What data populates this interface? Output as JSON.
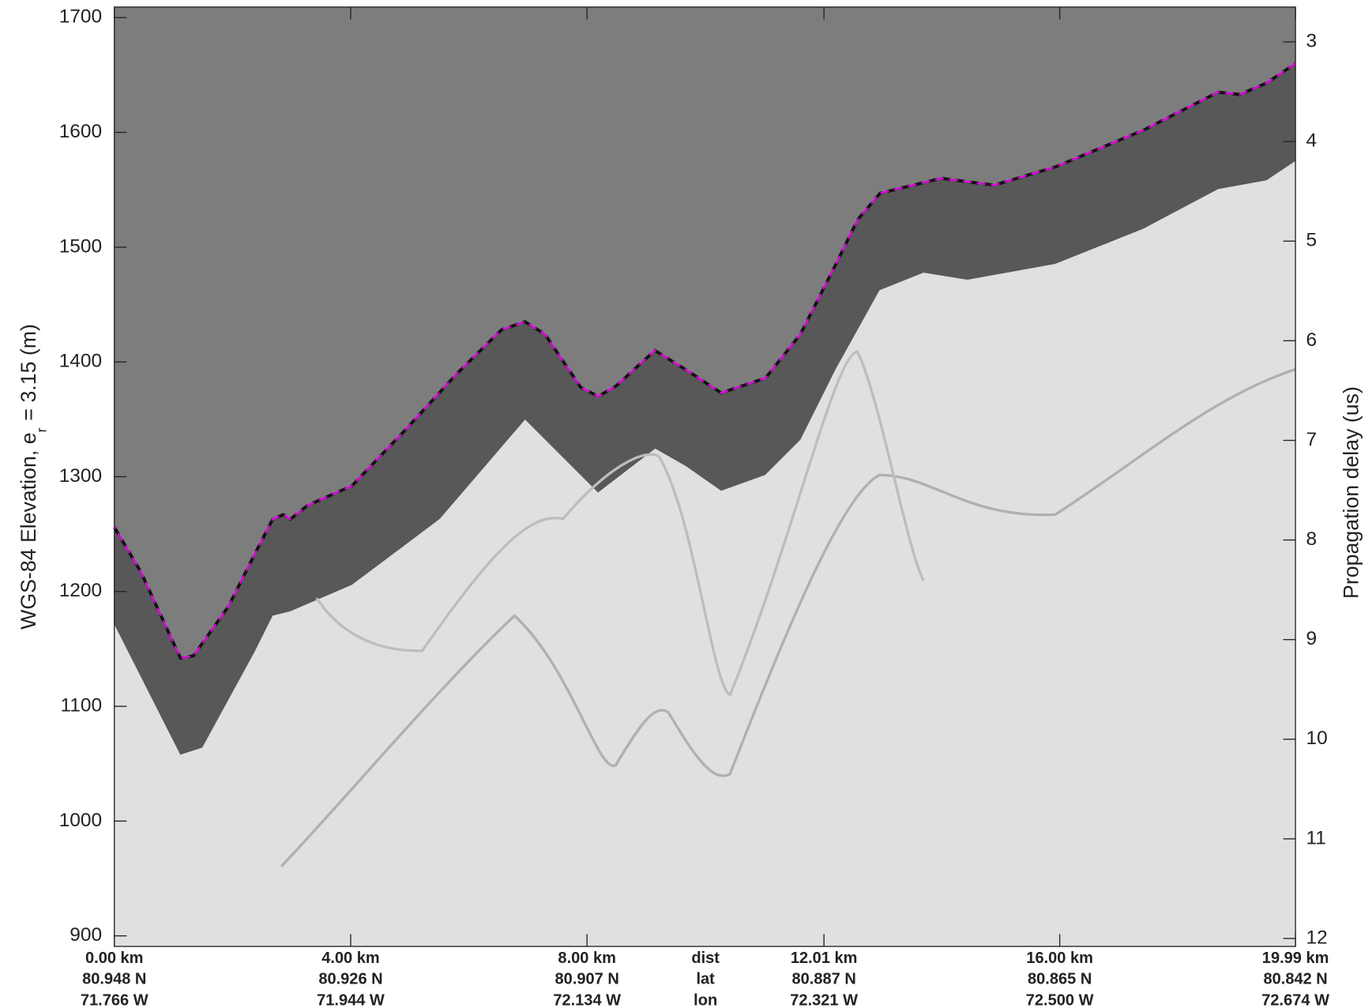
{
  "chart_data": {
    "type": "line",
    "ylabel": "WGS-84 Elevation, e",
    "ylabel_sub": "r",
    "ylabel_end": "= 3.15 (m)",
    "y2label": "Propagation delay (us)",
    "xlim": [
      0,
      19.99
    ],
    "xticks": [
      {
        "value": 0,
        "label": "0.00 km"
      },
      {
        "value": 4.0,
        "label": "4.00 km"
      },
      {
        "value": 8.0,
        "label": "8.00 km"
      },
      {
        "value": 12.01,
        "label": "12.01 km"
      },
      {
        "value": 16.0,
        "label": "16.00 km"
      },
      {
        "value": 19.99,
        "label": "19.99 km"
      }
    ],
    "xtick_lat": [
      "80.948 N",
      "80.926 N",
      "80.907 N",
      "80.887 N",
      "80.865 N",
      "80.842 N"
    ],
    "xtick_lon": [
      "71.766 W",
      "71.944 W",
      "72.134 W",
      "72.321 W",
      "72.500 W",
      "72.674 W"
    ],
    "row_labels": [
      "dist",
      "lat",
      "lon"
    ],
    "ylim": [
      890.8,
      1709.2
    ],
    "yticks": [
      900,
      1000,
      1100,
      1200,
      1300,
      1400,
      1500,
      1600,
      1700
    ],
    "y2lim": [
      2.65,
      12.08
    ],
    "y2_inverted": true,
    "y2ticks": [
      3,
      4,
      5,
      6,
      7,
      8,
      9,
      10,
      11,
      12
    ],
    "series": [
      {
        "color": "#e000e0",
        "x": [
          0,
          0.45,
          1.12,
          1.34,
          1.93,
          2.38,
          2.68,
          2.86,
          2.98,
          3.27,
          4.02,
          4.91,
          5.8,
          6.55,
          6.95,
          7.29,
          7.89,
          8.19,
          8.49,
          9.15,
          9.68,
          10.27,
          11.02,
          11.61,
          12.21,
          12.58,
          12.96,
          13.99,
          14.89,
          15.93,
          17.42,
          18.68,
          19.05,
          19.5,
          19.99
        ],
        "values": [
          1256,
          1217,
          1142,
          1144,
          1187,
          1233,
          1263,
          1267,
          1263,
          1275,
          1292,
          1340,
          1390,
          1428,
          1435,
          1424,
          1378,
          1370,
          1379,
          1410,
          1393,
          1373,
          1386,
          1424,
          1485,
          1524,
          1547,
          1560,
          1554,
          1570,
          1602,
          1635,
          1633,
          1643,
          1660
        ]
      }
    ]
  }
}
